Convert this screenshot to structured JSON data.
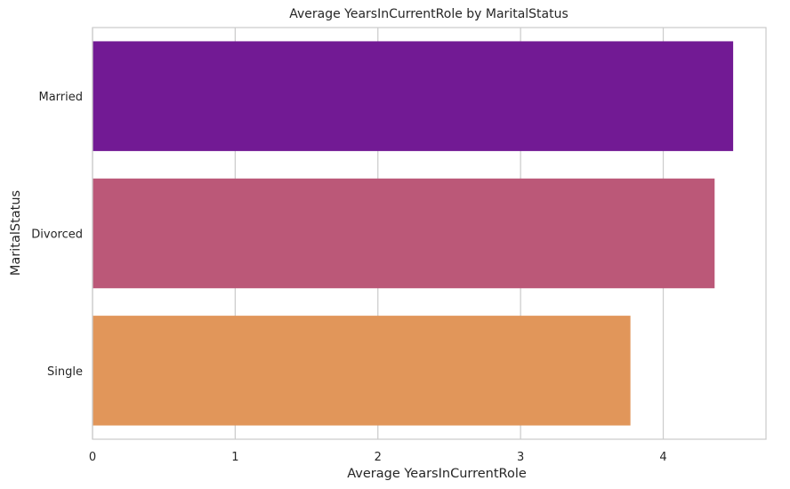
{
  "chart_data": {
    "type": "bar",
    "orientation": "horizontal",
    "title": "Average YearsInCurrentRole by MaritalStatus",
    "xlabel": "Average YearsInCurrentRole",
    "ylabel": "MaritalStatus",
    "categories": [
      "Married",
      "Divorced",
      "Single"
    ],
    "values": [
      4.49,
      4.36,
      3.77
    ],
    "colors": [
      "#721a94",
      "#bb5878",
      "#e1965a"
    ],
    "xlim": [
      0,
      4.72
    ],
    "xticks": [
      0,
      1,
      2,
      3,
      4
    ],
    "grid": true
  }
}
